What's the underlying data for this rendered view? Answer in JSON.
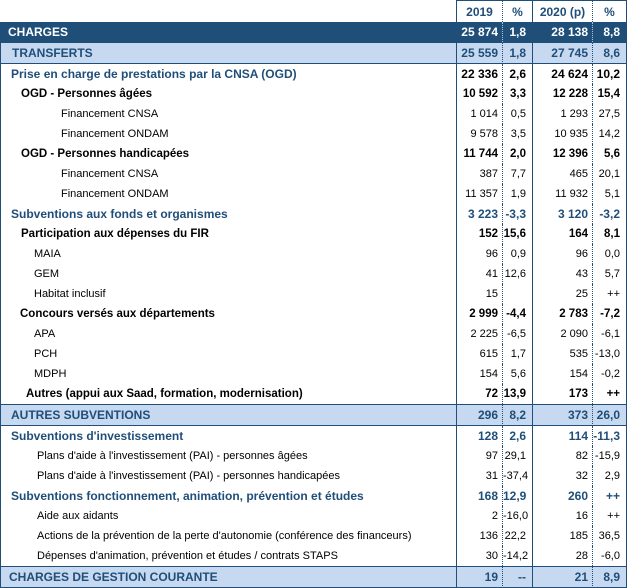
{
  "colors": {
    "dark_blue_fill": "#1F4E79",
    "light_blue_fill": "#C6D9F0",
    "blue_text": "#1F4E79",
    "border_blue": "#1F4E79",
    "white_text": "#FFFFFF"
  },
  "table": {
    "columns": {
      "label": "",
      "y2019": "2019",
      "pct1": "%",
      "y2020": "2020 (p)",
      "pct2": "%"
    },
    "rows": [
      {
        "label": "CHARGES",
        "v2019": "25 874",
        "p2019": "1,8",
        "v2020": "28 138",
        "p2020": "8,8",
        "style": "dark",
        "indent": 7
      },
      {
        "label": "TRANSFERTS",
        "v2019": "25 559",
        "p2019": "1,8",
        "v2020": "27 745",
        "p2020": "8,6",
        "style": "light",
        "indent": 11
      },
      {
        "label": "Prise en charge de prestations par la CNSA (OGD)",
        "v2019": "22 336",
        "p2019": "2,6",
        "v2020": "24 624",
        "p2020": "10,2",
        "style": "blue",
        "value_style": "blackbold",
        "indent": 10
      },
      {
        "label": "OGD - Personnes âgées",
        "v2019": "10 592",
        "p2019": "3,3",
        "v2020": "12 228",
        "p2020": "15,4",
        "style": "blackbold",
        "indent": 20
      },
      {
        "label": "Financement CNSA",
        "v2019": "1 014",
        "p2019": "0,5",
        "v2020": "1 293",
        "p2020": "27,5",
        "style": "reg",
        "indent": 60
      },
      {
        "label": "Financement ONDAM",
        "v2019": "9 578",
        "p2019": "3,5",
        "v2020": "10 935",
        "p2020": "14,2",
        "style": "reg",
        "indent": 60
      },
      {
        "label": "OGD - Personnes handicapées",
        "v2019": "11 744",
        "p2019": "2,0",
        "v2020": "12 396",
        "p2020": "5,6",
        "style": "blackbold",
        "indent": 20
      },
      {
        "label": "Financement CNSA",
        "v2019": "387",
        "p2019": "7,7",
        "v2020": "465",
        "p2020": "20,1",
        "style": "reg",
        "indent": 60
      },
      {
        "label": "Financement ONDAM",
        "v2019": "11 357",
        "p2019": "1,9",
        "v2020": "11 932",
        "p2020": "5,1",
        "style": "reg",
        "indent": 60
      },
      {
        "label": "Subventions aux fonds et organismes",
        "v2019": "3 223",
        "p2019": "-3,3",
        "v2020": "3 120",
        "p2020": "-3,2",
        "style": "blue",
        "indent": 10
      },
      {
        "label": "Participation aux dépenses du FIR",
        "v2019": "152",
        "p2019": "15,6",
        "v2020": "164",
        "p2020": "8,1",
        "style": "blackbold",
        "indent": 20
      },
      {
        "label": "MAIA",
        "v2019": "96",
        "p2019": "0,9",
        "v2020": "96",
        "p2020": "0,0",
        "style": "reg",
        "indent": 33
      },
      {
        "label": "GEM",
        "v2019": "41",
        "p2019": "12,6",
        "v2020": "43",
        "p2020": "5,7",
        "style": "reg",
        "indent": 33
      },
      {
        "label": "Habitat inclusif",
        "v2019": "15",
        "p2019": "",
        "v2020": "25",
        "p2020": "++",
        "style": "reg",
        "indent": 33
      },
      {
        "label": "Concours versés aux départements",
        "v2019": "2 999",
        "p2019": "-4,4",
        "v2020": "2 783",
        "p2020": "-7,2",
        "style": "blackbold",
        "indent": 19
      },
      {
        "label": "APA",
        "v2019": "2 225",
        "p2019": "-6,5",
        "v2020": "2 090",
        "p2020": "-6,1",
        "style": "reg",
        "indent": 33
      },
      {
        "label": "PCH",
        "v2019": "615",
        "p2019": "1,7",
        "v2020": "535",
        "p2020": "-13,0",
        "style": "reg",
        "indent": 33
      },
      {
        "label": "MDPH",
        "v2019": "154",
        "p2019": "5,6",
        "v2020": "154",
        "p2020": "-0,2",
        "style": "reg",
        "indent": 33
      },
      {
        "label": "Autres (appui aux Saad, formation, modernisation)",
        "v2019": "72",
        "p2019": "13,9",
        "v2020": "173",
        "p2020": "++",
        "style": "blackbold",
        "indent": 25
      },
      {
        "label": "AUTRES SUBVENTIONS",
        "v2019": "296",
        "p2019": "8,2",
        "v2020": "373",
        "p2020": "26,0",
        "style": "light",
        "indent": 10
      },
      {
        "label": "Subventions d'investissement",
        "v2019": "128",
        "p2019": "2,6",
        "v2020": "114",
        "p2020": "-11,3",
        "style": "blue",
        "indent": 10
      },
      {
        "label": "Plans d'aide à l'investissement (PAI) - personnes âgées",
        "v2019": "97",
        "p2019": "29,1",
        "v2020": "82",
        "p2020": "-15,9",
        "style": "reg",
        "indent": 36
      },
      {
        "label": "Plans d'aide à l'investissement (PAI) - personnes handicapées",
        "v2019": "31",
        "p2019": "-37,4",
        "v2020": "32",
        "p2020": "2,9",
        "style": "reg",
        "indent": 36
      },
      {
        "label": "Subventions fonctionnement, animation, prévention et études",
        "v2019": "168",
        "p2019": "12,9",
        "v2020": "260",
        "p2020": "++",
        "style": "blue",
        "indent": 10
      },
      {
        "label": "Aide aux aidants",
        "v2019": "2",
        "p2019": "-16,0",
        "v2020": "16",
        "p2020": "++",
        "style": "reg",
        "indent": 36
      },
      {
        "label": "Actions de la prévention de la perte d'autonomie (conférence des financeurs)",
        "v2019": "136",
        "p2019": "22,2",
        "v2020": "185",
        "p2020": "36,5",
        "style": "reg",
        "indent": 36
      },
      {
        "label": "Dépenses d'animation, prévention et études / contrats STAPS",
        "v2019": "30",
        "p2019": "-14,2",
        "v2020": "28",
        "p2020": "-6,0",
        "style": "reg",
        "indent": 36
      },
      {
        "label": "CHARGES DE GESTION COURANTE",
        "v2019": "19",
        "p2019": "--",
        "v2020": "21",
        "p2020": "8,9",
        "style": "light",
        "indent": 8
      }
    ]
  }
}
